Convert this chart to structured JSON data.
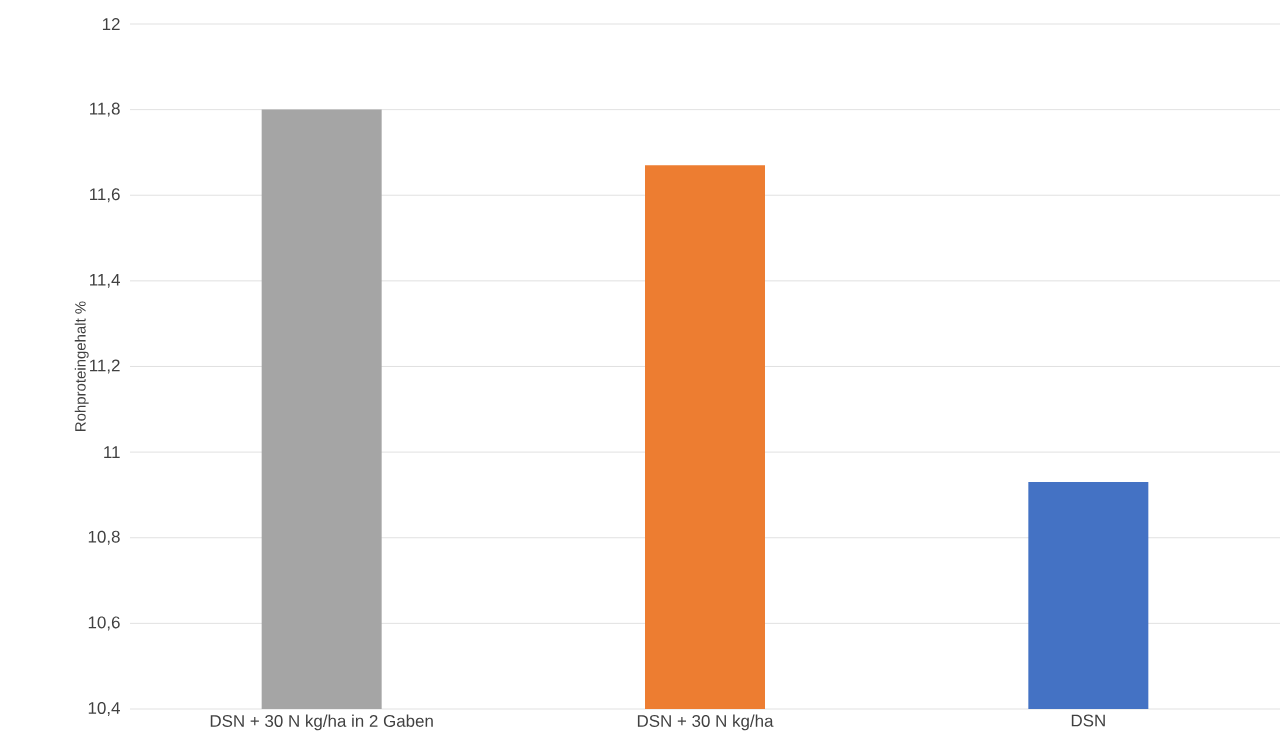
{
  "chart_data": {
    "type": "bar",
    "ylabel": "Rohproteingehalt %",
    "categories": [
      "DSN + 30 N kg/ha in 2 Gaben",
      "DSN + 30 N kg/ha",
      "DSN"
    ],
    "values": [
      11.8,
      11.67,
      10.93
    ],
    "colors": [
      "#a5a5a5",
      "#ed7d31",
      "#4472c4"
    ],
    "ylim": [
      10.4,
      12
    ],
    "yticks": [
      {
        "value": 10.4,
        "label": "10,4"
      },
      {
        "value": 10.6,
        "label": "10,6"
      },
      {
        "value": 10.8,
        "label": "10,8"
      },
      11,
      {
        "value": 11.2,
        "label": "11,2"
      },
      {
        "value": 11.4,
        "label": "11,4"
      },
      {
        "value": 11.6,
        "label": "11,6"
      },
      {
        "value": 11.8,
        "label": "11,8"
      },
      12
    ],
    "grid": "y"
  }
}
